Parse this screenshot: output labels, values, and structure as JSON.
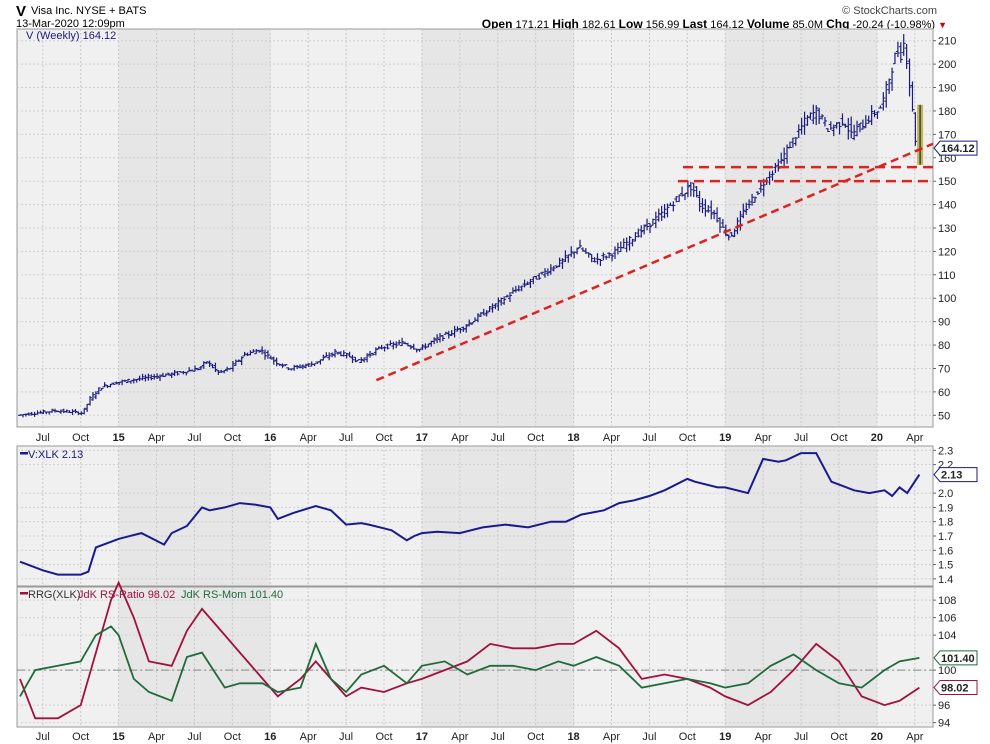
{
  "header": {
    "symbol": "V",
    "name": "Visa Inc. NYSE + BATS",
    "date": "13-Mar-2020 12:09pm",
    "watermark": "© StockCharts.com",
    "open_label": "Open",
    "open": "171.21",
    "high_label": "High",
    "high": "182.61",
    "low_label": "Low",
    "low": "156.99",
    "last_label": "Last",
    "last": "164.12",
    "volume_label": "Volume",
    "volume": "85.0M",
    "chg_label": "Chg",
    "chg": "-20.24 (-10.98%)",
    "chg_arrow": "▼"
  },
  "colors": {
    "price": "#1a1a80",
    "trendline": "#dd2222",
    "ratio": "#1a1a90",
    "rs_ratio": "#a0123c",
    "rs_mom": "#1f6b3a",
    "highlight": "#b8b020",
    "shade": "#e6e6e6",
    "bg": "#f0f0f0"
  },
  "chart_data": [
    {
      "type": "bar",
      "title": "V (Weekly) 164.12",
      "legend": "V (Weekly) 164.12",
      "last_value_tag": "164.12",
      "ylim": [
        45,
        215
      ],
      "yticks": [
        "50",
        "60",
        "70",
        "80",
        "90",
        "100",
        "110",
        "120",
        "130",
        "140",
        "150",
        "160",
        "170",
        "180",
        "190",
        "200",
        "210"
      ],
      "xticks": [
        "Jul",
        "Oct",
        "15",
        "Apr",
        "Jul",
        "Oct",
        "16",
        "Apr",
        "Jul",
        "Oct",
        "17",
        "Apr",
        "Jul",
        "Oct",
        "18",
        "Apr",
        "Jul",
        "Oct",
        "19",
        "Apr",
        "Jul",
        "Oct",
        "20",
        "Apr"
      ],
      "x_range": [
        "2014-05",
        "2020-04"
      ],
      "series_anchor": [
        [
          2014.35,
          50
        ],
        [
          2014.6,
          52
        ],
        [
          2014.78,
          51
        ],
        [
          2014.83,
          57
        ],
        [
          2014.9,
          62
        ],
        [
          2015.0,
          64
        ],
        [
          2015.2,
          66
        ],
        [
          2015.4,
          68
        ],
        [
          2015.55,
          70
        ],
        [
          2015.6,
          73
        ],
        [
          2015.68,
          68
        ],
        [
          2015.75,
          70
        ],
        [
          2015.85,
          76
        ],
        [
          2015.95,
          78
        ],
        [
          2016.05,
          73
        ],
        [
          2016.15,
          70
        ],
        [
          2016.3,
          72
        ],
        [
          2016.45,
          77
        ],
        [
          2016.55,
          75
        ],
        [
          2016.6,
          73
        ],
        [
          2016.75,
          79
        ],
        [
          2016.9,
          81
        ],
        [
          2017.0,
          78
        ],
        [
          2017.1,
          82
        ],
        [
          2017.3,
          88
        ],
        [
          2017.5,
          97
        ],
        [
          2017.65,
          104
        ],
        [
          2017.8,
          110
        ],
        [
          2017.95,
          116
        ],
        [
          2018.05,
          122
        ],
        [
          2018.15,
          116
        ],
        [
          2018.3,
          120
        ],
        [
          2018.45,
          128
        ],
        [
          2018.6,
          136
        ],
        [
          2018.72,
          144
        ],
        [
          2018.8,
          148
        ],
        [
          2018.85,
          140
        ],
        [
          2018.95,
          136
        ],
        [
          2019.0,
          130
        ],
        [
          2019.05,
          126
        ],
        [
          2019.15,
          138
        ],
        [
          2019.3,
          152
        ],
        [
          2019.38,
          158
        ],
        [
          2019.45,
          166
        ],
        [
          2019.55,
          176
        ],
        [
          2019.62,
          180
        ],
        [
          2019.7,
          172
        ],
        [
          2019.8,
          176
        ],
        [
          2019.85,
          170
        ],
        [
          2019.95,
          176
        ],
        [
          2020.05,
          182
        ],
        [
          2020.1,
          194
        ],
        [
          2020.15,
          206
        ],
        [
          2020.18,
          204
        ],
        [
          2020.2,
          210
        ],
        [
          2020.22,
          200
        ],
        [
          2020.25,
          182
        ],
        [
          2020.28,
          164.12
        ]
      ],
      "ohlc_last": {
        "open": 171.21,
        "high": 182.61,
        "low": 156.99,
        "close": 164.12
      },
      "annotations": {
        "support_lines": [
          156,
          150
        ],
        "trendline": {
          "from": [
            2016.7,
            65
          ],
          "to": [
            2020.35,
            166
          ]
        }
      }
    },
    {
      "type": "line",
      "title": "V:XLK 2.13",
      "legend": "V:XLK 2.13",
      "last_value_tag": "2.13",
      "ylim": [
        1.35,
        2.33
      ],
      "yticks": [
        "1.4",
        "1.5",
        "1.6",
        "1.7",
        "1.8",
        "1.9",
        "2.0",
        "2.2",
        "2.3"
      ],
      "x": [
        2014.35,
        2014.5,
        2014.6,
        2014.75,
        2014.8,
        2014.85,
        2015.0,
        2015.15,
        2015.3,
        2015.35,
        2015.45,
        2015.55,
        2015.6,
        2015.7,
        2015.8,
        2015.9,
        2016.0,
        2016.05,
        2016.15,
        2016.3,
        2016.4,
        2016.5,
        2016.6,
        2016.65,
        2016.8,
        2016.9,
        2016.95,
        2017.0,
        2017.1,
        2017.25,
        2017.4,
        2017.55,
        2017.7,
        2017.85,
        2017.95,
        2018.05,
        2018.2,
        2018.3,
        2018.4,
        2018.5,
        2018.6,
        2018.75,
        2018.8,
        2018.95,
        2019.0,
        2019.15,
        2019.25,
        2019.35,
        2019.4,
        2019.5,
        2019.6,
        2019.7,
        2019.75,
        2019.85,
        2019.95,
        2020.05,
        2020.1,
        2020.15,
        2020.2,
        2020.28
      ],
      "values": [
        1.52,
        1.46,
        1.43,
        1.43,
        1.45,
        1.62,
        1.68,
        1.72,
        1.64,
        1.72,
        1.77,
        1.9,
        1.88,
        1.9,
        1.93,
        1.92,
        1.9,
        1.82,
        1.86,
        1.91,
        1.88,
        1.78,
        1.79,
        1.78,
        1.74,
        1.67,
        1.7,
        1.72,
        1.73,
        1.72,
        1.76,
        1.78,
        1.76,
        1.8,
        1.8,
        1.85,
        1.88,
        1.93,
        1.95,
        1.98,
        2.02,
        2.1,
        2.08,
        2.04,
        2.04,
        2.0,
        2.24,
        2.22,
        2.23,
        2.28,
        2.28,
        2.08,
        2.06,
        2.02,
        2.0,
        2.02,
        1.98,
        2.04,
        2.0,
        2.13
      ]
    },
    {
      "type": "line",
      "title": "RRG(XLK) JdK RS-Ratio 98.02 JdK RS-Mom 101.40",
      "legend_prefix": "RRG(XLK)",
      "legend_ratio": "JdK RS-Ratio 98.02",
      "legend_mom": "JdK RS-Mom 101.40",
      "ylim": [
        93.5,
        109.5
      ],
      "yticks": [
        "94",
        "96",
        "100",
        "104",
        "106",
        "108"
      ],
      "reference_line": 100,
      "tags": {
        "rs_mom": "101.40",
        "rs_ratio": "98.02"
      },
      "x": [
        2014.35,
        2014.45,
        2014.6,
        2014.75,
        2014.85,
        2014.95,
        2015.0,
        2015.1,
        2015.2,
        2015.35,
        2015.45,
        2015.55,
        2015.7,
        2015.8,
        2015.95,
        2016.05,
        2016.2,
        2016.3,
        2016.4,
        2016.5,
        2016.6,
        2016.75,
        2016.9,
        2017.0,
        2017.15,
        2017.3,
        2017.45,
        2017.6,
        2017.75,
        2017.9,
        2018.0,
        2018.15,
        2018.3,
        2018.45,
        2018.6,
        2018.75,
        2018.9,
        2019.0,
        2019.15,
        2019.3,
        2019.45,
        2019.6,
        2019.75,
        2019.9,
        2020.05,
        2020.15,
        2020.28
      ],
      "series": [
        {
          "name": "JdK RS-Ratio",
          "values": [
            99,
            94.5,
            94.5,
            96,
            102,
            108,
            110,
            106,
            101,
            100.5,
            104.5,
            107,
            104,
            102,
            99,
            97,
            99,
            101,
            99,
            97,
            98,
            97.5,
            98.5,
            99,
            100,
            101,
            103,
            102.5,
            102.5,
            103,
            103,
            104.5,
            102.5,
            99,
            99.5,
            99,
            98,
            97,
            96,
            97.5,
            100,
            103,
            101,
            97,
            96,
            96.5,
            98
          ]
        },
        {
          "name": "JdK RS-Mom",
          "values": [
            97,
            100,
            100.5,
            101,
            104,
            105,
            104,
            99,
            97.5,
            96.5,
            101.5,
            102,
            98,
            98.5,
            98.5,
            97.5,
            98,
            103,
            99,
            97.5,
            99.5,
            100.5,
            98.5,
            100.5,
            101,
            99.5,
            100.5,
            100.5,
            100,
            101,
            100.5,
            101.5,
            100.5,
            98,
            98.5,
            99,
            98.5,
            98,
            98.5,
            100.5,
            101.8,
            100,
            98.5,
            98,
            100,
            101,
            101.4
          ]
        }
      ]
    }
  ]
}
